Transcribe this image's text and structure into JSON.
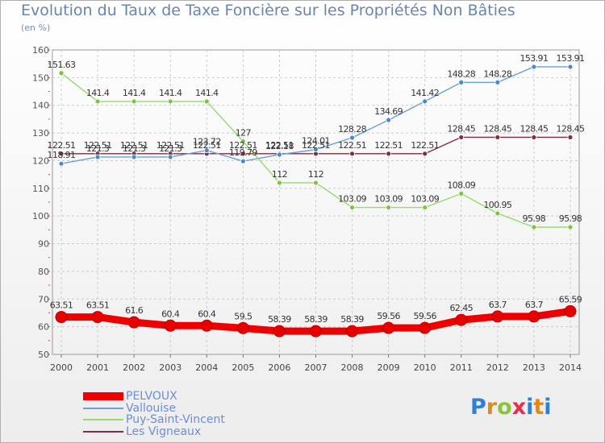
{
  "title": "Evolution du Taux de Taxe Foncière sur les Propriétés Non Bâties",
  "unit": "(en %)",
  "logo": "Proxiti",
  "chart_data": {
    "type": "line",
    "x": [
      "2000",
      "2001",
      "2002",
      "2003",
      "2004",
      "2005",
      "2006",
      "2007",
      "2008",
      "2009",
      "2010",
      "2011",
      "2012",
      "2013",
      "2014"
    ],
    "ylim": [
      50,
      160
    ],
    "yticks": [
      50,
      60,
      70,
      80,
      90,
      100,
      110,
      120,
      130,
      140,
      150,
      160
    ],
    "grid": true,
    "legend_position": "bottom-left",
    "series": [
      {
        "name": "PELVOUX",
        "color": "#ee0000",
        "values": [
          63.51,
          63.51,
          61.6,
          60.4,
          60.4,
          59.5,
          58.39,
          58.39,
          58.39,
          59.56,
          59.56,
          62.45,
          63.7,
          63.7,
          65.59
        ],
        "labels": [
          "63.51",
          "63.51",
          "61.6",
          "60.4",
          "60.4",
          "59.5",
          "58.39",
          "58.39",
          "58.39",
          "59.56",
          "59.56",
          "62.45",
          "63.7",
          "63.7",
          "65.59"
        ]
      },
      {
        "name": "Vallouise",
        "color": "#6a9fd8",
        "marker": "#4a88cc",
        "values": [
          118.91,
          121.3,
          121.3,
          121.3,
          123.72,
          119.79,
          122.18,
          124.01,
          128.28,
          134.69,
          141.42,
          148.28,
          148.28,
          153.91,
          153.91
        ],
        "labels": [
          "118.91",
          "121.3",
          "121.3",
          "121.3",
          "123.72",
          "119.79",
          "122.18",
          "124.01",
          "128.28",
          "134.69",
          "141.42",
          "148.28",
          "148.28",
          "153.91",
          "153.91"
        ]
      },
      {
        "name": "Puy-Saint-Vincent",
        "color": "#9ad86a",
        "marker": "#7cc43c",
        "values": [
          151.63,
          141.4,
          141.4,
          141.4,
          141.4,
          127,
          112,
          112,
          103.09,
          103.09,
          103.09,
          108.09,
          100.95,
          95.98,
          95.98
        ],
        "labels": [
          "151.63",
          "141.4",
          "141.4",
          "141.4",
          "141.4",
          "127",
          "112",
          "112",
          "103.09",
          "103.09",
          "103.09",
          "108.09",
          "100.95",
          "95.98",
          "95.98"
        ]
      },
      {
        "name": "Les Vigneaux",
        "color": "#7a3040",
        "marker": "#7a3040",
        "values": [
          122.51,
          122.51,
          122.51,
          122.51,
          122.51,
          122.51,
          122.51,
          122.51,
          122.51,
          122.51,
          122.51,
          128.45,
          128.45,
          128.45,
          128.45
        ],
        "labels": [
          "122.51",
          "122.51",
          "122.51",
          "122.51",
          "122.51",
          "122.51",
          "122.51",
          "122.51",
          "122.51",
          "122.51",
          "122.51",
          "128.45",
          "128.45",
          "128.45",
          "128.45"
        ]
      }
    ]
  }
}
